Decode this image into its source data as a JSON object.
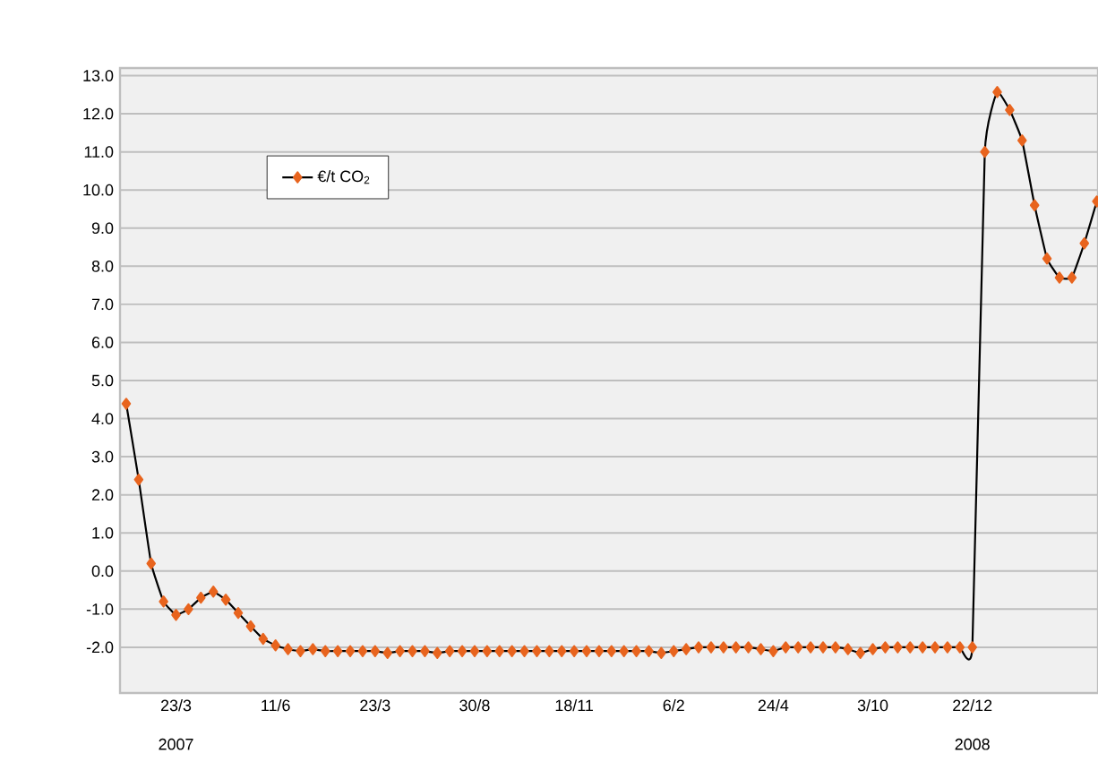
{
  "chart_data": {
    "type": "line",
    "categories": [
      null,
      null,
      null,
      null,
      "23/3",
      null,
      null,
      null,
      null,
      null,
      null,
      null,
      "11/6",
      null,
      null,
      null,
      null,
      null,
      null,
      null,
      "23/3",
      null,
      null,
      null,
      null,
      null,
      null,
      null,
      "30/8",
      null,
      null,
      null,
      null,
      null,
      null,
      null,
      "18/11",
      null,
      null,
      null,
      null,
      null,
      null,
      null,
      "6/2",
      null,
      null,
      null,
      null,
      null,
      null,
      null,
      "24/4",
      null,
      null,
      null,
      null,
      null,
      null,
      null,
      "3/10",
      null,
      null,
      null,
      null,
      null,
      null,
      null,
      "22/12",
      null,
      null,
      null,
      null,
      null,
      null,
      null,
      null,
      null,
      null
    ],
    "series": [
      {
        "name": "€/t CO$_{2}$",
        "color": "#e8641e",
        "values": [
          4.39,
          2.4,
          0.2,
          -0.8,
          -1.15,
          -1.0,
          -0.7,
          -0.54,
          -0.75,
          -1.1,
          -1.45,
          -1.78,
          -1.95,
          -2.05,
          -2.1,
          -2.05,
          -2.1,
          -2.1,
          -2.1,
          -2.1,
          -2.1,
          -2.15,
          -2.1,
          -2.1,
          -2.1,
          -2.15,
          -2.1,
          -2.1,
          -2.1,
          -2.1,
          -2.1,
          -2.1,
          -2.1,
          -2.1,
          -2.1,
          -2.1,
          -2.1,
          -2.1,
          -2.1,
          -2.1,
          -2.1,
          -2.1,
          -2.1,
          -2.15,
          -2.1,
          -2.05,
          -2.0,
          -2.0,
          -2.0,
          -2.0,
          -2.0,
          -2.05,
          -2.1,
          -2.0,
          -2.0,
          -2.0,
          -2.0,
          -2.0,
          -2.05,
          -2.15,
          -2.05,
          -2.0,
          -2.0,
          -2.0,
          -2.0,
          -2.0,
          -2.0,
          -2.0,
          -2.0,
          11.0,
          12.57,
          12.1,
          11.3,
          9.6,
          8.2,
          7.7,
          7.7,
          8.6,
          9.7
        ]
      }
    ],
    "ylim": [
      -3.2,
      13.2
    ],
    "yticks": [
      {
        "value": -2,
        "label": "-2.0"
      },
      {
        "value": -1,
        "label": "-1.0"
      },
      {
        "value": 0,
        "label": "0.0"
      },
      {
        "value": 1,
        "label": "1.0"
      },
      {
        "value": 2,
        "label": "2.0"
      },
      {
        "value": 3,
        "label": "3.0"
      },
      {
        "value": 4,
        "label": "4.0"
      },
      {
        "value": 5,
        "label": "5.0"
      },
      {
        "value": 6,
        "label": "6.0"
      },
      {
        "value": 7,
        "label": "7.0"
      },
      {
        "value": 8,
        "label": "8.0"
      },
      {
        "value": 9,
        "label": "9.0"
      },
      {
        "value": 10,
        "label": "10.0"
      },
      {
        "value": 11,
        "label": "11.0"
      },
      {
        "value": 12,
        "label": "12.0"
      },
      {
        "value": 13,
        "label": "13.0"
      }
    ],
    "grid": "y",
    "legend": "top left",
    "marker": "diamond",
    "line_style": "solid",
    "annotations": [
      "2007",
      "2008"
    ]
  }
}
